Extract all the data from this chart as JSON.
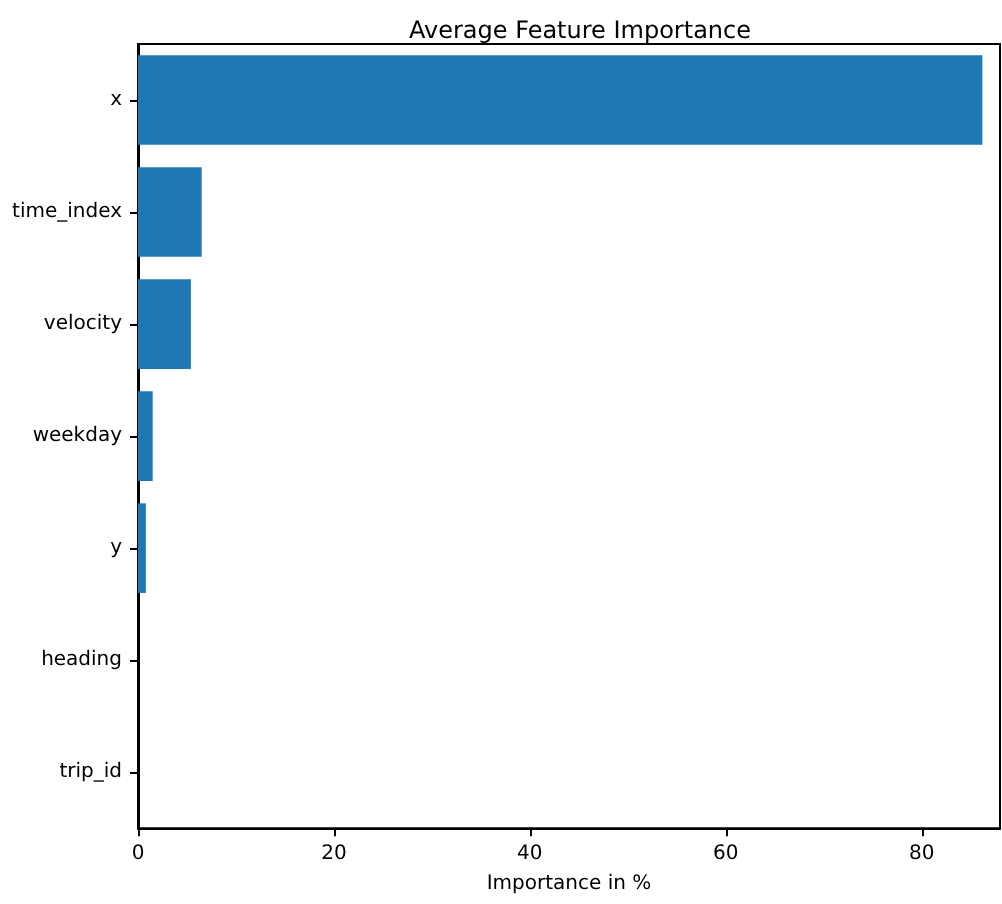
{
  "chart_data": {
    "type": "bar",
    "orientation": "horizontal",
    "title": "Average Feature Importance",
    "xlabel": "Importance in %",
    "categories": [
      "x",
      "time_index",
      "velocity",
      "weekday",
      "y",
      "heading",
      "trip_id"
    ],
    "values": [
      86.2,
      6.5,
      5.4,
      1.5,
      0.8,
      0,
      0
    ],
    "color": "#1f77b4",
    "xlim": [
      0,
      88
    ],
    "xticks": [
      0,
      20,
      40,
      60,
      80
    ]
  }
}
